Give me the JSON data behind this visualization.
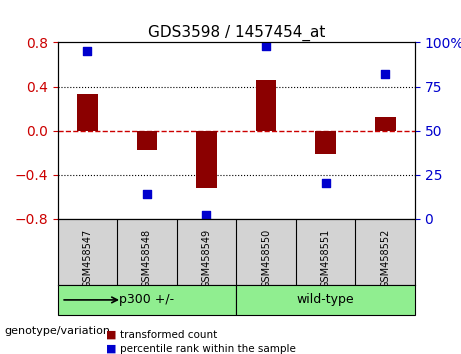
{
  "title": "GDS3598 / 1457454_at",
  "samples": [
    "GSM458547",
    "GSM458548",
    "GSM458549",
    "GSM458550",
    "GSM458551",
    "GSM458552"
  ],
  "transformed_count": [
    0.33,
    -0.18,
    -0.52,
    0.46,
    -0.21,
    0.12
  ],
  "percentile_rank": [
    95,
    14,
    2,
    98,
    20,
    82
  ],
  "ylim_left": [
    -0.8,
    0.8
  ],
  "ylim_right": [
    0,
    100
  ],
  "left_yticks": [
    -0.8,
    -0.4,
    0,
    0.4,
    0.8
  ],
  "right_yticks": [
    0,
    25,
    50,
    75,
    100
  ],
  "right_yticklabels": [
    "0",
    "25",
    "50",
    "75",
    "100%"
  ],
  "bar_color": "#8B0000",
  "dot_color": "#0000CD",
  "zero_line_color": "#CC0000",
  "dotted_line_color": "#000000",
  "groups": [
    {
      "label": "p300 +/-",
      "samples": [
        0,
        1,
        2
      ],
      "color": "#90EE90"
    },
    {
      "label": "wild-type",
      "samples": [
        3,
        4,
        5
      ],
      "color": "#90EE90"
    }
  ],
  "group_label": "genotype/variation",
  "legend_bar_label": "transformed count",
  "legend_dot_label": "percentile rank within the sample",
  "background_color": "#ffffff",
  "plot_bg_color": "#ffffff",
  "grid_color": "#000000",
  "tick_label_color_left": "#CC0000",
  "tick_label_color_right": "#0000CD"
}
